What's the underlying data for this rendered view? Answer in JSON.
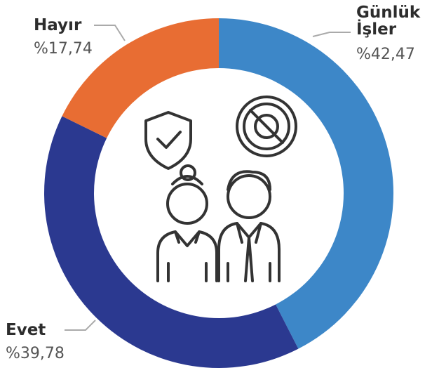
{
  "chart_data": {
    "type": "pie",
    "donut": true,
    "categories": [
      "Günlük İşler",
      "Evet",
      "Hayır"
    ],
    "values": [
      42.47,
      39.78,
      17.74
    ],
    "value_labels": [
      "%42,47",
      "%39,78",
      "%17,74"
    ],
    "colors": [
      "#3d87c8",
      "#2b3990",
      "#e86d33"
    ]
  }
}
